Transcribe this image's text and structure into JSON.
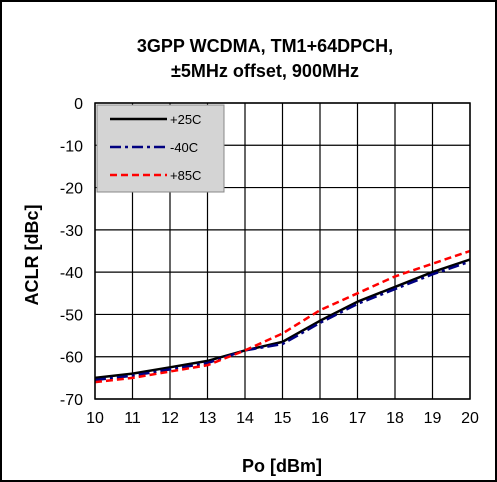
{
  "chart_data": {
    "type": "line",
    "title": [
      "3GPP WCDMA,  TM1+64DPCH,",
      "±5MHz offset, 900MHz"
    ],
    "xlabel": "Po [dBm]",
    "ylabel": "ACLR [dBc]",
    "xlim": [
      10,
      20
    ],
    "ylim": [
      -70,
      0
    ],
    "x_ticks": [
      10,
      11,
      12,
      13,
      14,
      15,
      16,
      17,
      18,
      19,
      20
    ],
    "y_ticks": [
      0,
      -10,
      -20,
      -30,
      -40,
      -50,
      -60,
      -70
    ],
    "grid": true,
    "legend_position": "top-left",
    "series": [
      {
        "name": "+25C",
        "color": "#000000",
        "dash": "solid",
        "x": [
          10,
          11,
          12,
          13,
          14,
          15,
          16,
          17,
          18,
          19,
          20
        ],
        "y": [
          -65,
          -64,
          -62.5,
          -61,
          -58.5,
          -56.5,
          -51.5,
          -47,
          -43.5,
          -40,
          -37
        ]
      },
      {
        "name": "-40C",
        "color": "#000080",
        "dash": "dash-dot",
        "x": [
          10,
          11,
          12,
          13,
          14,
          15,
          16,
          17,
          18,
          19,
          20
        ],
        "y": [
          -65.5,
          -64.5,
          -63,
          -61.5,
          -58.5,
          -57,
          -52,
          -47.5,
          -44,
          -40.5,
          -37.5
        ]
      },
      {
        "name": "+85C",
        "color": "#ff0000",
        "dash": "dashed",
        "x": [
          10,
          11,
          12,
          13,
          14,
          15,
          16,
          17,
          18,
          19,
          20
        ],
        "y": [
          -66,
          -65,
          -63.5,
          -62,
          -58.5,
          -54.5,
          -49,
          -45,
          -41,
          -38,
          -35
        ]
      }
    ]
  }
}
